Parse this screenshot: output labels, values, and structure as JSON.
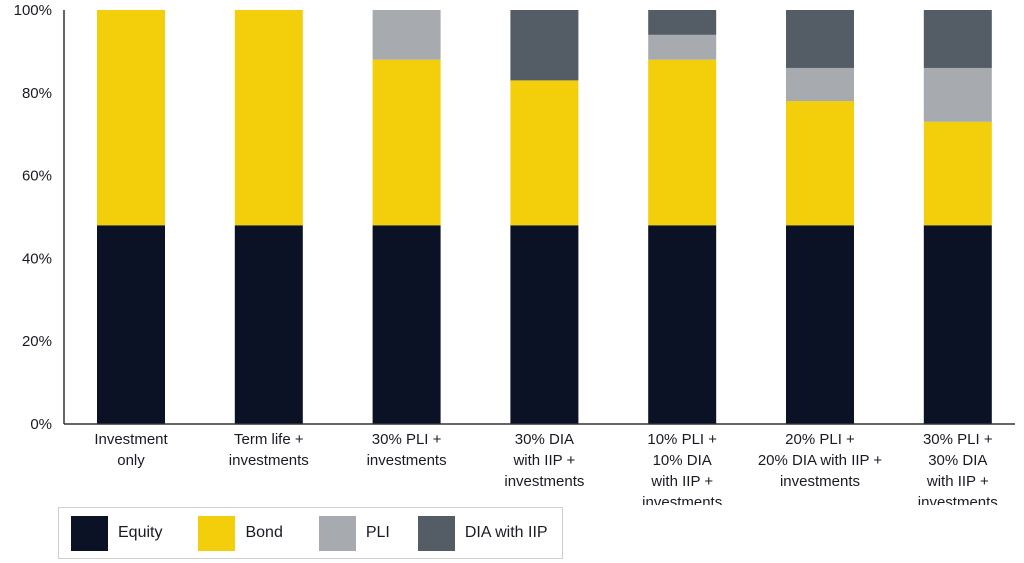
{
  "chart_data": {
    "type": "bar",
    "stacked": true,
    "categories": [
      [
        "Investment",
        "only"
      ],
      [
        "Term life +",
        "investments"
      ],
      [
        "30% PLI +",
        "investments"
      ],
      [
        "30% DIA",
        "with IIP +",
        "investments"
      ],
      [
        "10% PLI +",
        "10% DIA",
        "with IIP +",
        "investments"
      ],
      [
        "20% PLI +",
        "20% DIA with IIP +",
        "investments"
      ],
      [
        "30% PLI +",
        "30% DIA",
        "with IIP +",
        "investments"
      ]
    ],
    "series": [
      {
        "name": "Equity",
        "color": "#0b1226",
        "values": [
          48,
          48,
          48,
          48,
          48,
          48,
          48
        ]
      },
      {
        "name": "Bond",
        "color": "#f2ce0b",
        "values": [
          52,
          52,
          40,
          35,
          40,
          30,
          25
        ]
      },
      {
        "name": "PLI",
        "color": "#a7abaf",
        "values": [
          0,
          0,
          12,
          0,
          6,
          8,
          13
        ]
      },
      {
        "name": "DIA with IIP",
        "color": "#545c66",
        "values": [
          0,
          0,
          0,
          17,
          6,
          14,
          14
        ]
      }
    ],
    "yticks": [
      "0%",
      "20%",
      "40%",
      "60%",
      "80%",
      "100%"
    ],
    "ylim": [
      0,
      100
    ],
    "grid": false,
    "legend_position": "bottom-left"
  }
}
